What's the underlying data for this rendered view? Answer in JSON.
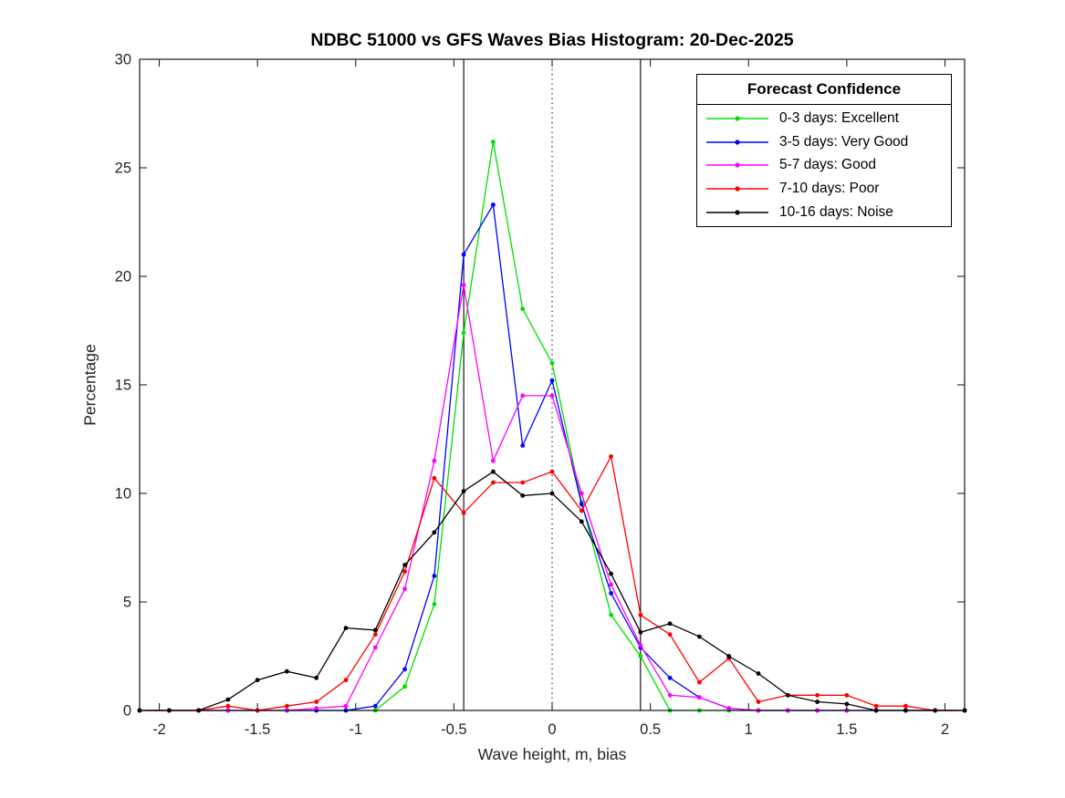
{
  "chart_data": {
    "type": "line",
    "title": "NDBC 51000 vs GFS Waves Bias Histogram: 20-Dec-2025",
    "xlabel": "Wave height, m, bias",
    "ylabel": "Percentage",
    "xlim": [
      -2.1,
      2.1
    ],
    "ylim": [
      0,
      30
    ],
    "grid": false,
    "xtick_values": [
      -2,
      -1.5,
      -1,
      -0.5,
      0,
      0.5,
      1,
      1.5,
      2
    ],
    "xtick_labels": [
      "-2",
      "-1.5",
      "-1",
      "-0.5",
      "0",
      "0.5",
      "1",
      "1.5",
      "2"
    ],
    "ytick_values": [
      0,
      5,
      10,
      15,
      20,
      25,
      30
    ],
    "ytick_labels": [
      "0",
      "5",
      "10",
      "15",
      "20",
      "25",
      "30"
    ],
    "reference_lines": [
      {
        "x": -0.45,
        "style": "solid",
        "color": "#000000"
      },
      {
        "x": 0,
        "style": "dotted",
        "color": "#000000"
      },
      {
        "x": 0.45,
        "style": "solid",
        "color": "#000000"
      }
    ],
    "legend": {
      "title": "Forecast Confidence",
      "position": "top-right"
    },
    "x": [
      -2.1,
      -1.95,
      -1.8,
      -1.65,
      -1.5,
      -1.35,
      -1.2,
      -1.05,
      -0.9,
      -0.75,
      -0.6,
      -0.45,
      -0.3,
      -0.15,
      0,
      0.15,
      0.3,
      0.45,
      0.6,
      0.75,
      0.9,
      1.05,
      1.2,
      1.35,
      1.5,
      1.65,
      1.8,
      1.95,
      2.1
    ],
    "series": [
      {
        "name": "0-3 days: Excellent",
        "color": "#00DF00",
        "values": [
          0,
          0,
          0,
          0,
          0,
          0,
          0,
          0,
          0,
          1.1,
          4.9,
          17.4,
          26.2,
          18.5,
          16,
          9.6,
          4.4,
          2.5,
          0,
          0,
          0,
          0,
          0,
          0,
          0,
          0,
          0,
          0,
          0
        ]
      },
      {
        "name": "3-5 days: Very Good",
        "color": "#0000FF",
        "values": [
          0,
          0,
          0,
          0,
          0,
          0,
          0,
          0,
          0.2,
          1.9,
          6.2,
          21,
          23.3,
          12.2,
          15.2,
          9.5,
          5.4,
          2.9,
          1.5,
          0.6,
          0.1,
          0,
          0,
          0,
          0,
          0,
          0,
          0,
          0
        ]
      },
      {
        "name": "5-7 days: Good",
        "color": "#FF00FF",
        "values": [
          0,
          0,
          0,
          0,
          0,
          0,
          0.1,
          0.2,
          2.9,
          5.6,
          11.5,
          19.6,
          11.5,
          14.5,
          14.5,
          10,
          5.8,
          3,
          0.7,
          0.6,
          0.1,
          0,
          0,
          0,
          0,
          0,
          0,
          0,
          0
        ]
      },
      {
        "name": "7-10 days: Poor",
        "color": "#FF0000",
        "values": [
          0,
          0,
          0,
          0.2,
          0,
          0.2,
          0.4,
          1.4,
          3.5,
          6.4,
          10.7,
          9.1,
          10.5,
          10.5,
          11,
          9.2,
          11.7,
          4.4,
          3.5,
          1.3,
          2.4,
          0.4,
          0.7,
          0.7,
          0.7,
          0.2,
          0.2,
          0,
          0
        ]
      },
      {
        "name": "10-16 days: Noise",
        "color": "#000000",
        "values": [
          0,
          0,
          0,
          0.5,
          1.4,
          1.8,
          1.5,
          3.8,
          3.7,
          6.7,
          8.2,
          10.1,
          11,
          9.9,
          10,
          8.7,
          6.3,
          3.6,
          4,
          3.4,
          2.5,
          1.7,
          0.7,
          0.4,
          0.3,
          0,
          0,
          0,
          0
        ]
      }
    ]
  }
}
